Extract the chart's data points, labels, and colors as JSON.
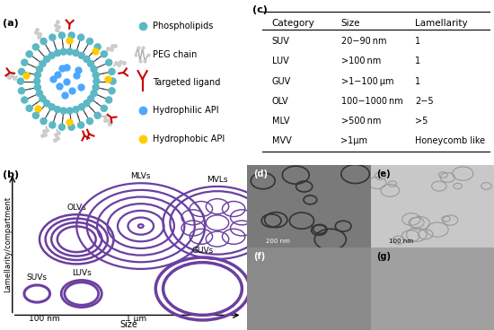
{
  "bg_color": "#ffffff",
  "table_data": {
    "headers": [
      "Category",
      "Size",
      "Lamellarity"
    ],
    "rows": [
      [
        "SUV",
        "20−90 nm",
        "1"
      ],
      [
        "LUV",
        ">100 nm",
        "1"
      ],
      [
        "GUV",
        ">1−100 μm",
        "1"
      ],
      [
        "OLV",
        "100−1000 nm",
        "2−5"
      ],
      [
        "MLV",
        ">500 nm",
        ">5"
      ],
      [
        "MVV",
        ">1μm",
        "Honeycomb like"
      ]
    ]
  },
  "vesicle_color": "#6B3FA0",
  "teal_color": "#5bb8c4",
  "teal_dark": "#4a9aaa",
  "tail_color": "#3a3a3a",
  "peg_color": "#aaaaaa",
  "ligand_color": "#cc0000",
  "blue_api": "#4da6ff",
  "yellow_api": "#ffcc00"
}
